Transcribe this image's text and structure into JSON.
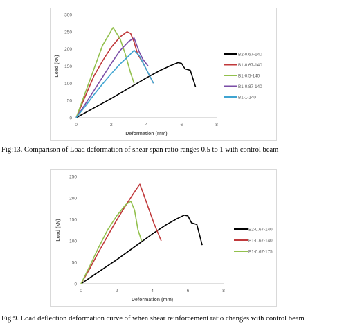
{
  "chart_data": [
    {
      "type": "line",
      "title": "",
      "xlabel": "Deformation (mm)",
      "ylabel": "Load (kN)",
      "xlim": [
        0,
        8
      ],
      "ylim": [
        0,
        300
      ],
      "xticks": [
        0,
        2,
        4,
        6,
        8
      ],
      "yticks": [
        0,
        50,
        100,
        150,
        200,
        250,
        300
      ],
      "grid": false,
      "legend_position": "right",
      "series": [
        {
          "name": "B2-0.67-140",
          "color": "#000000",
          "x": [
            0,
            1,
            2,
            3,
            4,
            4.8,
            5.4,
            5.8,
            6.0,
            6.2,
            6.5,
            6.8
          ],
          "y": [
            0,
            28,
            56,
            86,
            116,
            138,
            152,
            160,
            158,
            142,
            138,
            90
          ]
        },
        {
          "name": "B1-0.67-140",
          "color": "#c0393b",
          "x": [
            0,
            0.5,
            1.0,
            1.5,
            2.0,
            2.5,
            2.9,
            3.1,
            3.3,
            3.5,
            3.8,
            4.1,
            4.4
          ],
          "y": [
            0,
            60,
            120,
            165,
            205,
            235,
            250,
            245,
            220,
            185,
            160,
            130,
            100
          ]
        },
        {
          "name": "B1-0.5-140",
          "color": "#92c04d",
          "x": [
            0,
            0.5,
            1.0,
            1.5,
            2.1,
            2.5,
            2.8,
            3.1,
            3.3
          ],
          "y": [
            0,
            70,
            140,
            210,
            262,
            230,
            185,
            130,
            100
          ]
        },
        {
          "name": "B1-0.87-140",
          "color": "#7a4da6",
          "x": [
            0,
            0.5,
            1.0,
            1.5,
            2.0,
            2.5,
            3.0,
            3.3,
            3.6,
            3.8,
            4.1
          ],
          "y": [
            0,
            38,
            78,
            118,
            158,
            195,
            222,
            232,
            190,
            170,
            150
          ]
        },
        {
          "name": "B1-1-140",
          "color": "#3fa4d1",
          "x": [
            0,
            0.5,
            1.0,
            1.5,
            2.0,
            2.5,
            3.0,
            3.3,
            3.6,
            3.9,
            4.4
          ],
          "y": [
            0,
            32,
            66,
            98,
            128,
            156,
            180,
            196,
            180,
            150,
            100
          ]
        }
      ]
    },
    {
      "type": "line",
      "title": "",
      "xlabel": "Deformation (mm)",
      "ylabel": "Load (kN)",
      "xlim": [
        0,
        8
      ],
      "ylim": [
        0,
        250
      ],
      "xticks": [
        0,
        2,
        4,
        6,
        8
      ],
      "yticks": [
        0,
        50,
        100,
        150,
        200,
        250
      ],
      "grid": false,
      "legend_position": "right",
      "series": [
        {
          "name": "B2-0.67-140",
          "color": "#000000",
          "x": [
            0,
            1,
            2,
            3,
            4,
            4.8,
            5.4,
            5.8,
            6.0,
            6.2,
            6.5,
            6.8
          ],
          "y": [
            0,
            28,
            56,
            86,
            116,
            138,
            152,
            160,
            158,
            142,
            138,
            90
          ]
        },
        {
          "name": "B1-0.67-140",
          "color": "#c0393b",
          "x": [
            0,
            0.5,
            1.0,
            1.5,
            2.0,
            2.5,
            3.0,
            3.3,
            3.5,
            3.8,
            4.1,
            4.5
          ],
          "y": [
            0,
            36,
            75,
            112,
            148,
            182,
            214,
            232,
            210,
            175,
            140,
            100
          ]
        },
        {
          "name": "B1-0.67-175",
          "color": "#92c04d",
          "x": [
            0,
            0.5,
            1.0,
            1.5,
            2.0,
            2.5,
            2.8,
            3.0,
            3.2,
            3.4
          ],
          "y": [
            0,
            42,
            86,
            126,
            158,
            184,
            192,
            172,
            125,
            100
          ]
        }
      ]
    }
  ],
  "captions": {
    "fig13": "Fig:13. Comparison of Load deformation of shear span ratio ranges 0.5 to 1 with control beam",
    "fig9": "Fig:9. Load deflection deformation curve of when shear reinforcement ratio changes with control beam"
  }
}
